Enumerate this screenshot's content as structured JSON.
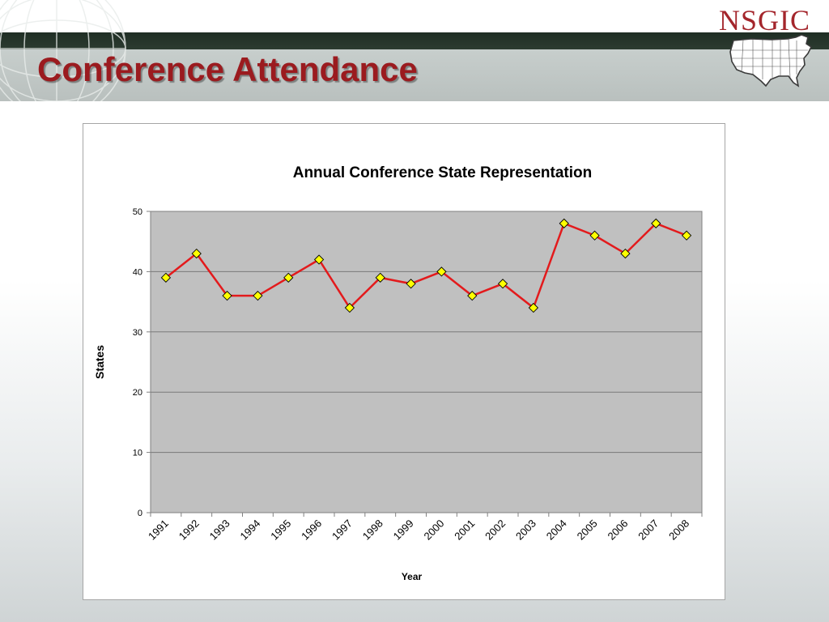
{
  "slide": {
    "title": "Conference Attendance",
    "logo_text": "NSGIC"
  },
  "colors": {
    "title": "#9b1b1f",
    "logo": "#a4262c",
    "line": "#e31a1c",
    "marker_fill": "#ffff00",
    "plot_bg": "#c0c0c0"
  },
  "chart_data": {
    "type": "line",
    "title": "Annual Conference State Representation",
    "xlabel": "Year",
    "ylabel": "States",
    "categories": [
      "1991",
      "1992",
      "1993",
      "1994",
      "1995",
      "1996",
      "1997",
      "1998",
      "1999",
      "2000",
      "2001",
      "2002",
      "2003",
      "2004",
      "2005",
      "2006",
      "2007",
      "2008"
    ],
    "series": [
      {
        "values": [
          39,
          43,
          36,
          36,
          39,
          42,
          34,
          39,
          38,
          40,
          36,
          38,
          34,
          48,
          46,
          43,
          48,
          46
        ]
      }
    ],
    "ylim": [
      0,
      50
    ],
    "yticks": [
      "0",
      "10",
      "20",
      "30",
      "40",
      "50"
    ],
    "grid": true,
    "legend": "none",
    "marker": "diamond"
  }
}
